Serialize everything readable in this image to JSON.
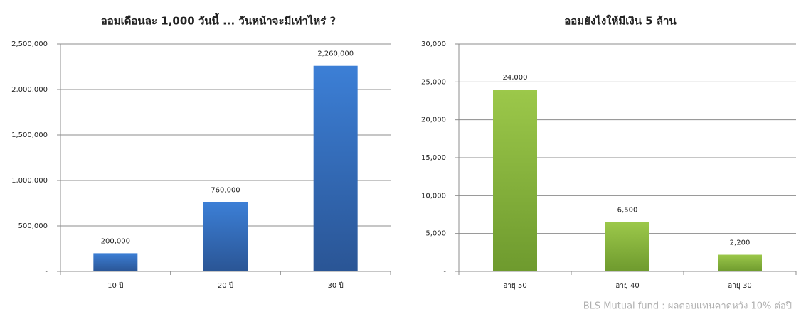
{
  "chart_data": [
    {
      "type": "bar",
      "title": "ออมเดือนละ 1,000 วันนี้ ... วันหน้าจะมีเท่าไหร่ ?",
      "categories": [
        "10 ปี",
        "20 ปี",
        "30 ปี"
      ],
      "values": [
        200000,
        760000,
        2260000
      ],
      "value_labels": [
        "200,000",
        "760,000",
        "2,260,000"
      ],
      "color": "#3c7fd6",
      "color_bottom": "#2a5595",
      "ylim": [
        0,
        2500000
      ],
      "yticks": [
        {
          "value": 0,
          "label": "-"
        },
        {
          "value": 500000,
          "label": "500,000"
        },
        {
          "value": 1000000,
          "label": "1,000,000"
        },
        {
          "value": 1500000,
          "label": "1,500,000"
        },
        {
          "value": 2000000,
          "label": "2,000,000"
        },
        {
          "value": 2500000,
          "label": "2,500,000"
        }
      ],
      "grid": true
    },
    {
      "type": "bar",
      "title": "ออมยังไงให้มีเงิน 5 ล้าน",
      "categories": [
        "อายุ 50",
        "อายุ 40",
        "อายุ 30"
      ],
      "values": [
        24000,
        6500,
        2200
      ],
      "value_labels": [
        "24,000",
        "6,500",
        "2,200"
      ],
      "color": "#9cc84a",
      "color_bottom": "#6e9a2e",
      "ylim": [
        0,
        30000
      ],
      "yticks": [
        {
          "value": 0,
          "label": "-"
        },
        {
          "value": 5000,
          "label": "5,000"
        },
        {
          "value": 10000,
          "label": "10,000"
        },
        {
          "value": 15000,
          "label": "15,000"
        },
        {
          "value": 20000,
          "label": "20,000"
        },
        {
          "value": 25000,
          "label": "25,000"
        },
        {
          "value": 30000,
          "label": "30,000"
        }
      ],
      "grid": true
    }
  ],
  "footer": "BLS Mutual fund : ผลตอบแทนคาดหวัง 10% ต่อปี"
}
